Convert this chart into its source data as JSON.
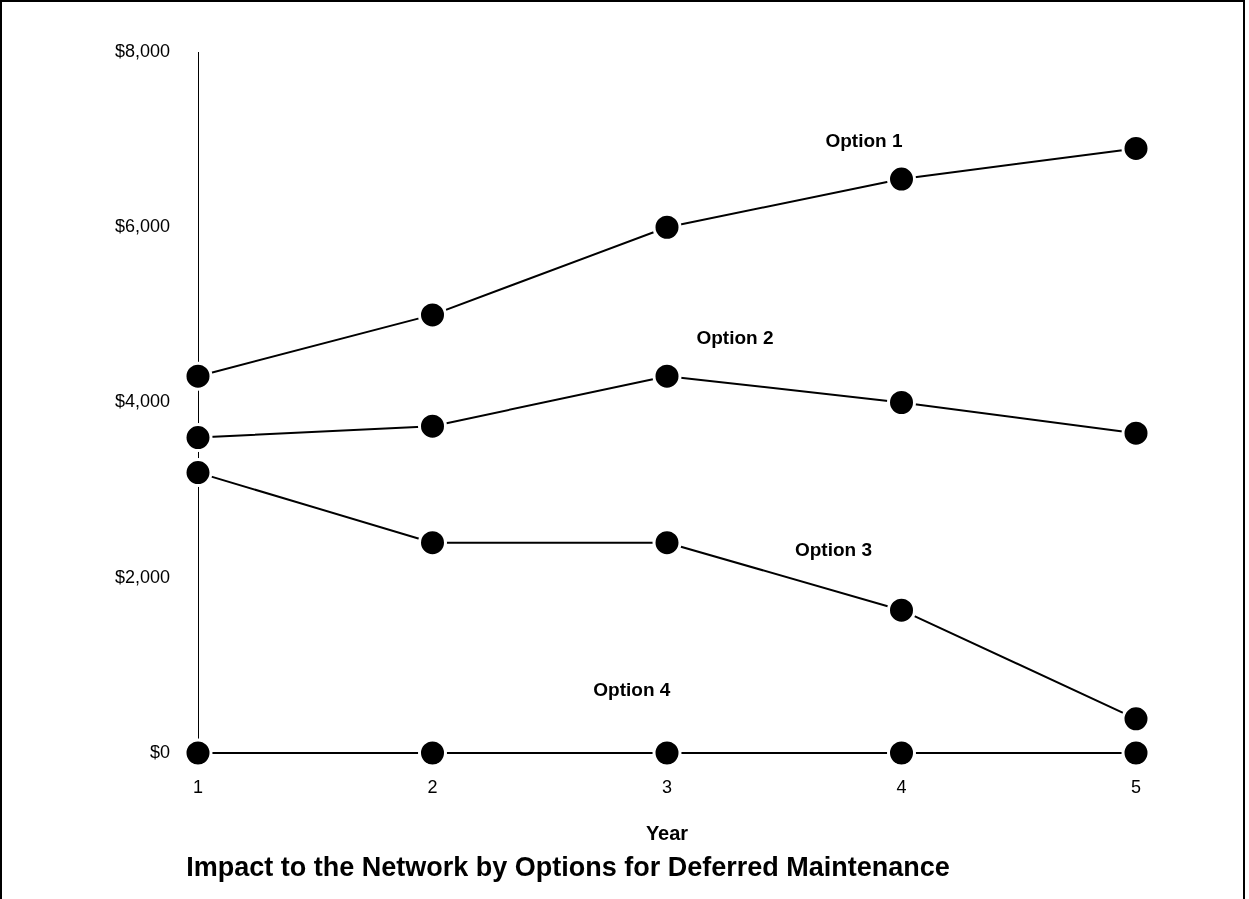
{
  "chart_data": {
    "type": "line",
    "title": "Impact to the Network by Options for Deferred Maintenance",
    "xlabel": "Year",
    "x": [
      1,
      2,
      3,
      4,
      5
    ],
    "xlim": [
      1,
      5
    ],
    "xticks": [
      1,
      2,
      3,
      4,
      5
    ],
    "ylim": [
      0,
      8000
    ],
    "yticks": [
      {
        "value": 0,
        "label": "$0"
      },
      {
        "value": 2000,
        "label": "$2,000"
      },
      {
        "value": 4000,
        "label": "$4,000"
      },
      {
        "value": 6000,
        "label": "$6,000"
      },
      {
        "value": 8000,
        "label": "$8,000"
      }
    ],
    "grid": false,
    "legend": false,
    "marker": "circle",
    "line_style": "solid",
    "series": [
      {
        "name": "Option 1",
        "color": "#000000",
        "values": [
          4300,
          5000,
          6000,
          6550,
          6900
        ]
      },
      {
        "name": "Option 2",
        "color": "#000000",
        "values": [
          3600,
          3730,
          4300,
          4000,
          3650
        ]
      },
      {
        "name": "Option 3",
        "color": "#000000",
        "values": [
          3200,
          2400,
          2400,
          1630,
          390
        ]
      },
      {
        "name": "Option 4",
        "color": "#000000",
        "values": [
          0,
          0,
          0,
          0,
          0
        ]
      }
    ]
  }
}
